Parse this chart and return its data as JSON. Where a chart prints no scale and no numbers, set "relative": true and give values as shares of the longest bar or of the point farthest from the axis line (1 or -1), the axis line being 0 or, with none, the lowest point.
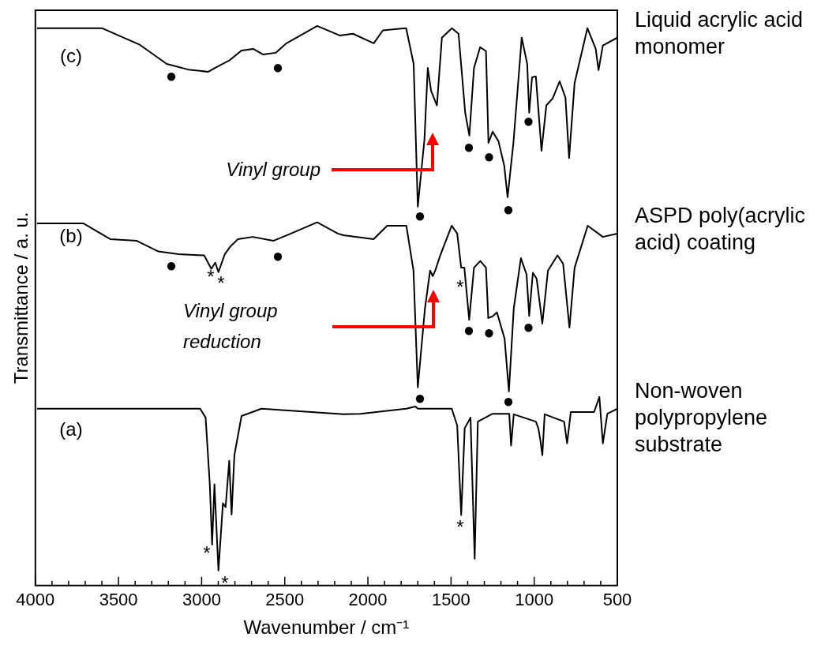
{
  "chart_data": {
    "type": "line",
    "relative": true,
    "xlabel": "Wavenumber / cm⁻¹",
    "ylabel": "Transmittance / a. u.",
    "xlim": [
      4000,
      500
    ],
    "xticks": [
      4000,
      {
        "value": 3900,
        "label": null
      },
      {
        "value": 3800,
        "label": null
      },
      {
        "value": 3700,
        "label": null
      },
      {
        "value": 3600,
        "label": null
      },
      3500,
      {
        "value": 3400,
        "label": null
      },
      {
        "value": 3300,
        "label": null
      },
      {
        "value": 3200,
        "label": null
      },
      {
        "value": 3100,
        "label": null
      },
      3000,
      {
        "value": 2900,
        "label": null
      },
      {
        "value": 2800,
        "label": null
      },
      {
        "value": 2700,
        "label": null
      },
      {
        "value": 2600,
        "label": null
      },
      2500,
      {
        "value": 2400,
        "label": null
      },
      {
        "value": 2300,
        "label": null
      },
      {
        "value": 2200,
        "label": null
      },
      {
        "value": 2100,
        "label": null
      },
      2000,
      {
        "value": 1900,
        "label": null
      },
      {
        "value": 1800,
        "label": null
      },
      {
        "value": 1700,
        "label": null
      },
      {
        "value": 1600,
        "label": null
      },
      1500,
      {
        "value": 1400,
        "label": null
      },
      {
        "value": 1300,
        "label": null
      },
      {
        "value": 1200,
        "label": null
      },
      {
        "value": 1100,
        "label": null
      },
      1000,
      {
        "value": 900,
        "label": null
      },
      {
        "value": 800,
        "label": null
      },
      {
        "value": 700,
        "label": null
      },
      {
        "value": 600,
        "label": null
      },
      500
    ],
    "series": [
      {
        "name": "Liquid acrylic acid monomer",
        "color": "#000000",
        "x": [
          3990,
          3600,
          3370,
          3210,
          3080,
          2960,
          2920,
          2830,
          2760,
          2690,
          2630,
          2555,
          2490,
          2305,
          2170,
          2090,
          1965,
          1910,
          1770,
          1725,
          1700,
          1660,
          1640,
          1620,
          1585,
          1555,
          1495,
          1455,
          1415,
          1390,
          1362,
          1325,
          1290,
          1275,
          1250,
          1215,
          1180,
          1160,
          1125,
          1075,
          1042,
          1030,
          1013,
          990,
          956,
          927,
          890,
          847,
          812,
          790,
          757,
          680,
          630,
          613,
          587,
          500
        ],
        "values": [
          0.996,
          0.996,
          0.966,
          0.932,
          0.922,
          0.918,
          0.925,
          0.939,
          0.956,
          0.959,
          0.949,
          0.952,
          0.969,
          1.0,
          0.983,
          0.986,
          0.969,
          0.992,
          0.996,
          0.932,
          0.677,
          0.797,
          0.925,
          0.884,
          0.858,
          0.979,
          0.996,
          0.986,
          0.845,
          0.804,
          0.925,
          0.962,
          0.955,
          0.791,
          0.811,
          0.794,
          0.75,
          0.694,
          0.791,
          0.979,
          0.932,
          0.845,
          0.908,
          0.91,
          0.777,
          0.858,
          0.87,
          0.901,
          0.872,
          0.764,
          0.898,
          0.996,
          0.959,
          0.921,
          0.965,
          0.979
        ]
      },
      {
        "name": "ASPD poly(acrylic acid) coating",
        "color": "#000000",
        "x": [
          3990,
          3710,
          3550,
          3390,
          3260,
          3140,
          2985,
          2942,
          2918,
          2899,
          2861,
          2827,
          2782,
          2693,
          2569,
          2463,
          2305,
          2181,
          2147,
          1966,
          1884,
          1769,
          1726,
          1700,
          1657,
          1626,
          1610,
          1595,
          1565,
          1496,
          1463,
          1439,
          1420,
          1391,
          1362,
          1324,
          1290,
          1276,
          1250,
          1224,
          1178,
          1152,
          1123,
          1080,
          1046,
          1030,
          1008,
          985,
          951,
          917,
          860,
          826,
          788,
          757,
          678,
          587,
          500
        ],
        "values": [
          0.647,
          0.647,
          0.619,
          0.616,
          0.597,
          0.592,
          0.59,
          0.566,
          0.577,
          0.56,
          0.592,
          0.606,
          0.619,
          0.623,
          0.616,
          0.629,
          0.649,
          0.629,
          0.626,
          0.619,
          0.643,
          0.643,
          0.563,
          0.354,
          0.495,
          0.563,
          0.553,
          0.563,
          0.59,
          0.643,
          0.629,
          0.568,
          0.568,
          0.475,
          0.568,
          0.58,
          0.568,
          0.478,
          0.481,
          0.488,
          0.441,
          0.347,
          0.495,
          0.585,
          0.556,
          0.482,
          0.559,
          0.548,
          0.468,
          0.563,
          0.59,
          0.575,
          0.461,
          0.568,
          0.643,
          0.623,
          0.629
        ]
      },
      {
        "name": "Non-woven polypropylene substrate",
        "color": "#000000",
        "x": [
          3990,
          3009,
          2976,
          2951,
          2937,
          2923,
          2899,
          2872,
          2856,
          2834,
          2820,
          2803,
          2760,
          2640,
          2147,
          2044,
          1769,
          1714,
          1700,
          1496,
          1463,
          1439,
          1418,
          1383,
          1358,
          1339,
          1250,
          1150,
          1139,
          1123,
          990,
          975,
          963,
          951,
          937,
          820,
          802,
          780,
          640,
          608,
          587,
          560,
          500
        ],
        "values": [
          0.316,
          0.316,
          0.3,
          0.181,
          0.073,
          0.181,
          0.027,
          0.147,
          0.14,
          0.223,
          0.127,
          0.233,
          0.303,
          0.316,
          0.306,
          0.307,
          0.316,
          0.32,
          0.316,
          0.316,
          0.286,
          0.126,
          0.281,
          0.3,
          0.048,
          0.293,
          0.307,
          0.307,
          0.25,
          0.306,
          0.293,
          0.281,
          0.26,
          0.233,
          0.306,
          0.293,
          0.254,
          0.31,
          0.31,
          0.337,
          0.254,
          0.307,
          0.316
        ]
      }
    ],
    "annotations": [
      "(c)",
      "(b)",
      "(a)",
      "●",
      "●",
      "●",
      "●",
      "●",
      "●",
      "●",
      "●",
      "●",
      "*",
      "*",
      "*",
      "●",
      "●",
      "●",
      "●",
      "●",
      "*",
      "*",
      "*",
      "Vinyl group",
      "Vinyl group reduction"
    ],
    "legend": false,
    "grid": false
  }
}
